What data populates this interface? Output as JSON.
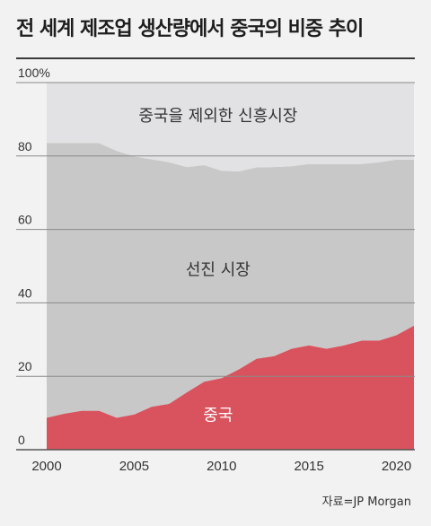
{
  "header": {
    "title": "전 세계 제조업 생산량에서 중국의 비중 추이"
  },
  "source": "자료=JP Morgan",
  "chart_data": {
    "type": "area",
    "stacked": true,
    "xlim": [
      2000,
      2021
    ],
    "ylim": [
      0,
      100
    ],
    "y_ticks": [
      {
        "value": 0,
        "label": "0"
      },
      {
        "value": 20,
        "label": "20"
      },
      {
        "value": 40,
        "label": "40"
      },
      {
        "value": 60,
        "label": "60"
      },
      {
        "value": 80,
        "label": "80"
      },
      {
        "value": 100,
        "label": "100%"
      }
    ],
    "x_ticks": [
      {
        "value": 2000,
        "label": "2000"
      },
      {
        "value": 2005,
        "label": "2005"
      },
      {
        "value": 2010,
        "label": "2010"
      },
      {
        "value": 2015,
        "label": "2015"
      },
      {
        "value": 2020,
        "label": "2020"
      }
    ],
    "x": [
      2000,
      2001,
      2002,
      2003,
      2004,
      2005,
      2006,
      2007,
      2008,
      2009,
      2010,
      2011,
      2012,
      2013,
      2014,
      2015,
      2016,
      2017,
      2018,
      2019,
      2020,
      2021
    ],
    "series": [
      {
        "name": "중국",
        "color": "#d9535e",
        "values": [
          8.7,
          9.8,
          10.6,
          10.6,
          8.7,
          9.6,
          11.7,
          12.5,
          15.6,
          18.5,
          19.5,
          21.9,
          24.8,
          25.5,
          27.5,
          28.4,
          27.5,
          28.4,
          29.7,
          29.7,
          31.2,
          33.8
        ]
      },
      {
        "name": "선진 시장",
        "color": "#c8c8c8",
        "values": [
          74.8,
          73.7,
          72.9,
          72.9,
          72.7,
          70.3,
          67.4,
          65.8,
          61.4,
          59.0,
          56.5,
          53.9,
          52.1,
          51.5,
          49.7,
          49.4,
          50.3,
          49.4,
          48.1,
          48.6,
          47.8,
          45.2
        ]
      },
      {
        "name": "중국을 제외한 신흥시장",
        "color": "#e2e2e4",
        "values": [
          16.5,
          16.5,
          16.5,
          16.5,
          18.6,
          20.1,
          20.9,
          21.7,
          23.0,
          22.5,
          24.0,
          24.2,
          23.1,
          23.0,
          22.8,
          22.2,
          22.2,
          22.2,
          22.2,
          21.7,
          21.0,
          21.0
        ]
      }
    ],
    "series_labels": [
      {
        "series": 0,
        "text": "중국",
        "at_x": 2009.8,
        "at_y": 8,
        "color": "#ffffff"
      },
      {
        "series": 1,
        "text": "선진 시장",
        "at_x": 2009.8,
        "at_y": 47.5,
        "color": "#333333"
      },
      {
        "series": 2,
        "text": "중국을 제외한 신흥시장",
        "at_x": 2009.8,
        "at_y": 89.5,
        "color": "#333333"
      }
    ],
    "grid": true
  }
}
